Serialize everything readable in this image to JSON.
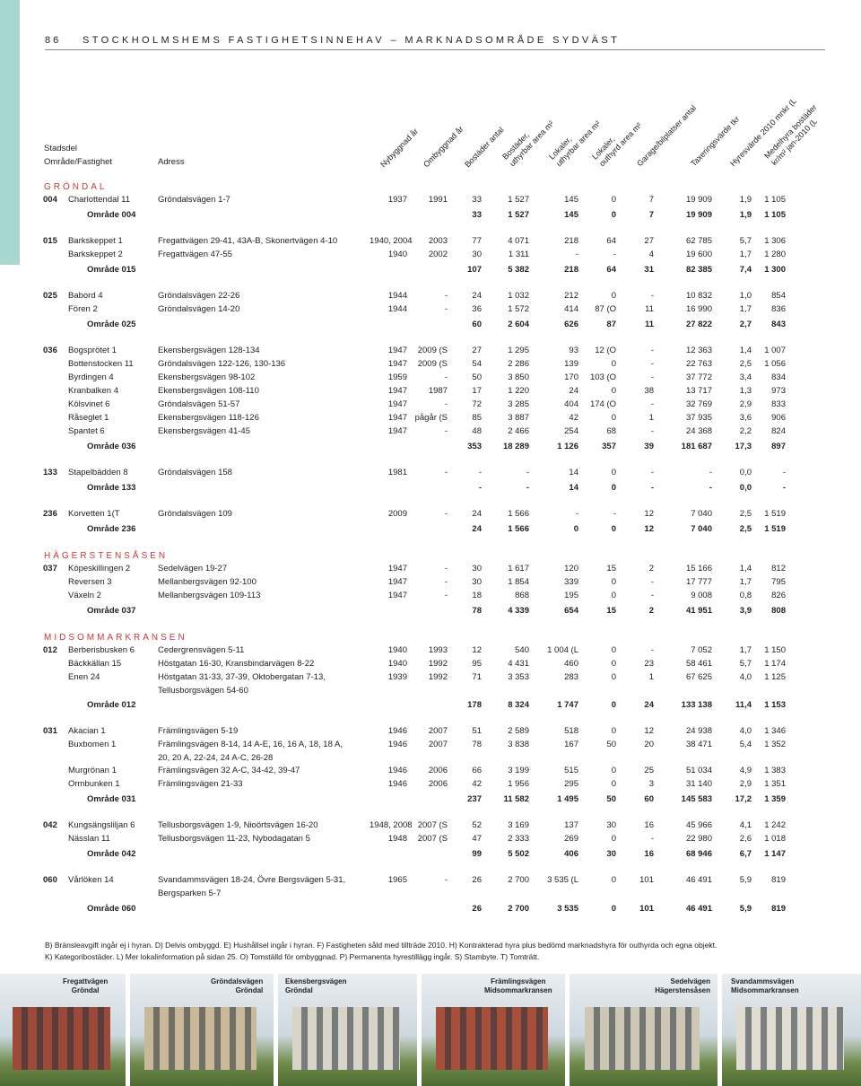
{
  "header": {
    "page": "86",
    "title": "STOCKHOLMSHEMS FASTIGHETSINNEHAV – MARKNADSOMRÅDE SYDVÄST"
  },
  "columns": {
    "stadsdel": "Stadsdel",
    "fastighet": "Område/Fastighet",
    "adress": "Adress",
    "rotated": [
      [
        "Nybyggnad år"
      ],
      [
        "Ombyggnad år"
      ],
      [
        "Bostäder antal"
      ],
      [
        "Bostäder,",
        "uthyrbar area m²"
      ],
      [
        "Lokaler,",
        "uthyrbar area m²"
      ],
      [
        "Lokaler,",
        "outhyrd area m²"
      ],
      [
        "Garage/bilplatser antal"
      ],
      [
        "Taxeringsvärde tkr"
      ],
      [
        "Hyresvärde 2010 mnkr (L"
      ],
      [
        "Medelhyra bostäder",
        "kr/m² jan-2010 (L"
      ]
    ]
  },
  "sections": [
    {
      "name": "GRÖNDAL",
      "groups": [
        {
          "code": "004",
          "rows": [
            [
              "Charlottendal 11",
              "Gröndalsvägen 1-7",
              "1937",
              "1991",
              "33",
              "1 527",
              "145",
              "0",
              "7",
              "19 909",
              "1,9",
              "1 105"
            ]
          ],
          "total": {
            "label": "Område 004",
            "values": [
              "33",
              "1 527",
              "145",
              "0",
              "7",
              "19 909",
              "1,9",
              "1 105"
            ]
          }
        },
        {
          "code": "015",
          "rows": [
            [
              "Barkskeppet 1",
              "Fregattvägen 29-41, 43A-B, Skonertvägen 4-10",
              "1940, 2004",
              "2003",
              "77",
              "4 071",
              "218",
              "64",
              "27",
              "62 785",
              "5,7",
              "1 306"
            ],
            [
              "Barkskeppet 2",
              "Fregattvägen 47-55",
              "1940",
              "2002",
              "30",
              "1 311",
              "-",
              "-",
              "4",
              "19 600",
              "1,7",
              "1 280"
            ]
          ],
          "total": {
            "label": "Område 015",
            "values": [
              "107",
              "5 382",
              "218",
              "64",
              "31",
              "82 385",
              "7,4",
              "1 300"
            ]
          }
        },
        {
          "code": "025",
          "rows": [
            [
              "Babord 4",
              "Gröndalsvägen 22-26",
              "1944",
              "-",
              "24",
              "1 032",
              "212",
              "0",
              "-",
              "10 832",
              "1,0",
              "854"
            ],
            [
              "Fören 2",
              "Gröndalsvägen 14-20",
              "1944",
              "-",
              "36",
              "1 572",
              "414",
              "87 (O",
              "11",
              "16 990",
              "1,7",
              "836"
            ]
          ],
          "total": {
            "label": "Område 025",
            "values": [
              "60",
              "2 604",
              "626",
              "87",
              "11",
              "27 822",
              "2,7",
              "843"
            ]
          }
        },
        {
          "code": "036",
          "rows": [
            [
              "Bogsprötet 1",
              "Ekensbergsvägen 128-134",
              "1947",
              "2009 (S",
              "27",
              "1 295",
              "93",
              "12 (O",
              "-",
              "12 363",
              "1,4",
              "1 007"
            ],
            [
              "Bottenstocken 11",
              "Gröndalsvägen 122-126, 130-136",
              "1947",
              "2009 (S",
              "54",
              "2 286",
              "139",
              "0",
              "-",
              "22 763",
              "2,5",
              "1 056"
            ],
            [
              "Byrdingen 4",
              "Ekensbergsvägen 98-102",
              "1959",
              "-",
              "50",
              "3 850",
              "170",
              "103 (O",
              "-",
              "37 772",
              "3,4",
              "834"
            ],
            [
              "Kranbalken 4",
              "Ekensbergsvägen 108-110",
              "1947",
              "1987",
              "17",
              "1 220",
              "24",
              "0",
              "38",
              "13 717",
              "1,3",
              "973"
            ],
            [
              "Kölsvinet 6",
              "Gröndalsvägen 51-57",
              "1947",
              "-",
              "72",
              "3 285",
              "404",
              "174 (O",
              "-",
              "32 769",
              "2,9",
              "833"
            ],
            [
              "Råseglet 1",
              "Ekensbergsvägen 118-126",
              "1947",
              "pågår (S",
              "85",
              "3 887",
              "42",
              "0",
              "1",
              "37 935",
              "3,6",
              "906"
            ],
            [
              "Spantet 6",
              "Ekensbergsvägen 41-45",
              "1947",
              "-",
              "48",
              "2 466",
              "254",
              "68",
              "-",
              "24 368",
              "2,2",
              "824"
            ]
          ],
          "total": {
            "label": "Område 036",
            "values": [
              "353",
              "18 289",
              "1 126",
              "357",
              "39",
              "181 687",
              "17,3",
              "897"
            ]
          }
        },
        {
          "code": "133",
          "rows": [
            [
              "Stapelbädden 8",
              "Gröndalsvägen 158",
              "1981",
              "-",
              "-",
              "-",
              "14",
              "0",
              "-",
              "-",
              "0,0",
              "-"
            ]
          ],
          "total": {
            "label": "Område 133",
            "values": [
              "-",
              "-",
              "14",
              "0",
              "-",
              "-",
              "0,0",
              "-"
            ]
          }
        },
        {
          "code": "236",
          "rows": [
            [
              "Korvetten 1(T",
              "Gröndalsvägen 109",
              "2009",
              "-",
              "24",
              "1 566",
              "-",
              "-",
              "12",
              "7 040",
              "2,5",
              "1 519"
            ]
          ],
          "total": {
            "label": "Område 236",
            "values": [
              "24",
              "1 566",
              "0",
              "0",
              "12",
              "7 040",
              "2,5",
              "1 519"
            ]
          }
        }
      ]
    },
    {
      "name": "HÄGERSTENSÅSEN",
      "groups": [
        {
          "code": "037",
          "rows": [
            [
              "Köpeskillingen 2",
              "Sedelvägen 19-27",
              "1947",
              "-",
              "30",
              "1 617",
              "120",
              "15",
              "2",
              "15 166",
              "1,4",
              "812"
            ],
            [
              "Reversen 3",
              "Mellanbergsvägen 92-100",
              "1947",
              "-",
              "30",
              "1 854",
              "339",
              "0",
              "-",
              "17 777",
              "1,7",
              "795"
            ],
            [
              "Växeln 2",
              "Mellanbergsvägen 109-113",
              "1947",
              "-",
              "18",
              "868",
              "195",
              "0",
              "-",
              "9 008",
              "0,8",
              "826"
            ]
          ],
          "total": {
            "label": "Område 037",
            "values": [
              "78",
              "4 339",
              "654",
              "15",
              "2",
              "41 951",
              "3,9",
              "808"
            ]
          }
        }
      ]
    },
    {
      "name": "MIDSOMMARKRANSEN",
      "groups": [
        {
          "code": "012",
          "rows": [
            [
              "Berberisbusken 6",
              "Cedergrensvägen 5-11",
              "1940",
              "1993",
              "12",
              "540",
              "1 004 (L",
              "0",
              "-",
              "7 052",
              "1,7",
              "1 150"
            ],
            [
              "Bäckkällan 15",
              "Höstgatan 16-30, Kransbindarvägen 8-22",
              "1940",
              "1992",
              "95",
              "4 431",
              "460",
              "0",
              "23",
              "58 461",
              "5,7",
              "1 174"
            ],
            [
              "Enen 24",
              [
                "Höstgatan 31-33, 37-39, Oktobergatan 7-13,",
                "Tellusborgsvägen 54-60"
              ],
              "1939",
              "1992",
              "71",
              "3 353",
              "283",
              "0",
              "1",
              "67 625",
              "4,0",
              "1 125"
            ]
          ],
          "total": {
            "label": "Område 012",
            "values": [
              "178",
              "8 324",
              "1 747",
              "0",
              "24",
              "133 138",
              "11,4",
              "1 153"
            ]
          }
        },
        {
          "code": "031",
          "rows": [
            [
              "Akacian 1",
              "Främlingsvägen 5-19",
              "1946",
              "2007",
              "51",
              "2 589",
              "518",
              "0",
              "12",
              "24 938",
              "4,0",
              "1 346"
            ],
            [
              "Buxbomen 1",
              [
                "Främlingsvägen 8-14, 14 A-E, 16, 16 A, 18, 18 A,",
                "20, 20 A, 22-24, 24 A-C, 26-28"
              ],
              "1946",
              "2007",
              "78",
              "3 838",
              "167",
              "50",
              "20",
              "38 471",
              "5,4",
              "1 352"
            ],
            [
              "Murgrönan 1",
              "Främlingsvägen 32 A-C, 34-42, 39-47",
              "1946",
              "2006",
              "66",
              "3 199",
              "515",
              "0",
              "25",
              "51 034",
              "4,9",
              "1 383"
            ],
            [
              "Ormbunken 1",
              "Främlingsvägen 21-33",
              "1946",
              "2006",
              "42",
              "1 956",
              "295",
              "0",
              "3",
              "31 140",
              "2,9",
              "1 351"
            ]
          ],
          "total": {
            "label": "Område 031",
            "values": [
              "237",
              "11 582",
              "1 495",
              "50",
              "60",
              "145 583",
              "17,2",
              "1 359"
            ]
          }
        },
        {
          "code": "042",
          "rows": [
            [
              "Kungsängsliljan 6",
              "Tellusborgsvägen 1-9, Nioörtsvägen 16-20",
              "1948, 2008",
              "2007 (S",
              "52",
              "3 169",
              "137",
              "30",
              "16",
              "45 966",
              "4,1",
              "1 242"
            ],
            [
              "Nässlan 11",
              "Tellusborgsvägen 11-23, Nybodagatan 5",
              "1948",
              "2007 (S",
              "47",
              "2 333",
              "269",
              "0",
              "-",
              "22 980",
              "2,6",
              "1 018"
            ]
          ],
          "total": {
            "label": "Område 042",
            "values": [
              "99",
              "5 502",
              "406",
              "30",
              "16",
              "68 946",
              "6,7",
              "1 147"
            ]
          }
        },
        {
          "code": "060",
          "rows": [
            [
              "Vårlöken 14",
              [
                "Svandammsvägen 18-24, Övre Bergsvägen 5-31,",
                "Bergsparken 5-7"
              ],
              "1965",
              "-",
              "26",
              "2 700",
              "3 535 (L",
              "0",
              "101",
              "46 491",
              "5,9",
              "819"
            ]
          ],
          "total": {
            "label": "Område 060",
            "values": [
              "26",
              "2 700",
              "3 535",
              "0",
              "101",
              "46 491",
              "5,9",
              "819"
            ]
          }
        }
      ]
    }
  ],
  "footnotes": [
    "B) Bränsleavgift ingår ej i hyran. D) Delvis ombyggd. E) Hushållsel ingår i hyran. F) Fastigheten såld med tillträde 2010. H) Kontrakterad hyra plus bedömd marknadshyra för outhyrda och egna objekt.",
    "K) Kategoribostäder.  L) Mer lokalinformation på sidan 25. O) Tomställd för ombyggnad. P) Permanenta hyrestillägg ingår. S) Stambyte. T) Tomträtt."
  ],
  "photos": [
    [
      "Fregattvägen",
      "Gröndal"
    ],
    [
      "Gröndalsvägen",
      "Gröndal"
    ],
    [
      "Ekensbergsvägen",
      "Gröndal"
    ],
    [
      "Främlingsvägen",
      "Midsommarkransen"
    ],
    [
      "Sedelvägen",
      "Hägerstensåsen"
    ],
    [
      "Svandammsvägen",
      "Midsommarkransen"
    ]
  ]
}
